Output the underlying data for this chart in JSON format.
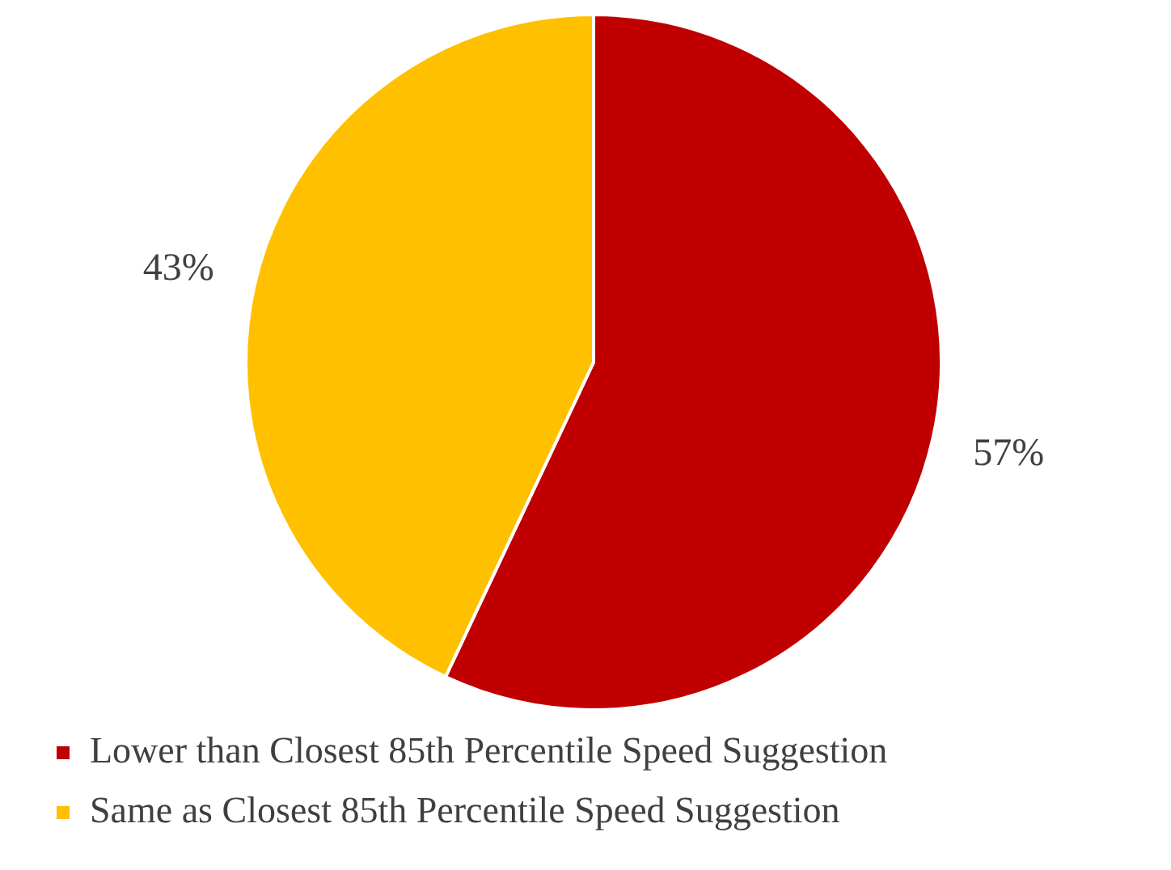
{
  "chart_data": {
    "type": "pie",
    "categories": [
      "Lower than Closest 85th Percentile Speed Suggestion",
      "Same as Closest 85th Percentile Speed Suggestion"
    ],
    "values": [
      57,
      43
    ],
    "colors": [
      "#c00000",
      "#ffc000"
    ],
    "value_labels": [
      "57%",
      "43%"
    ],
    "legend": "bottom"
  }
}
